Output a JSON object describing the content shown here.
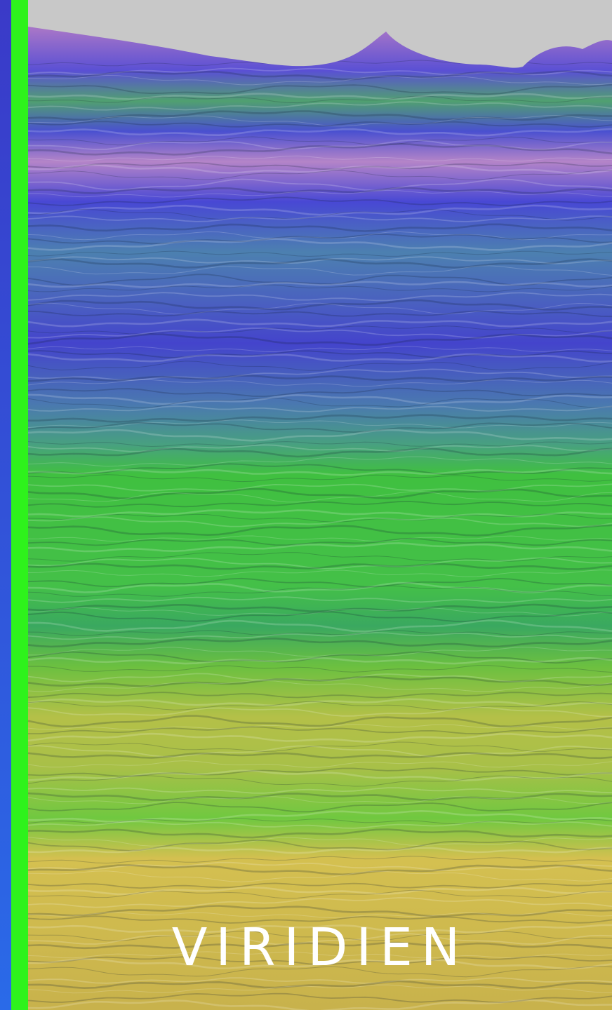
{
  "logo": {
    "text": "VIRIDIEN"
  }
}
